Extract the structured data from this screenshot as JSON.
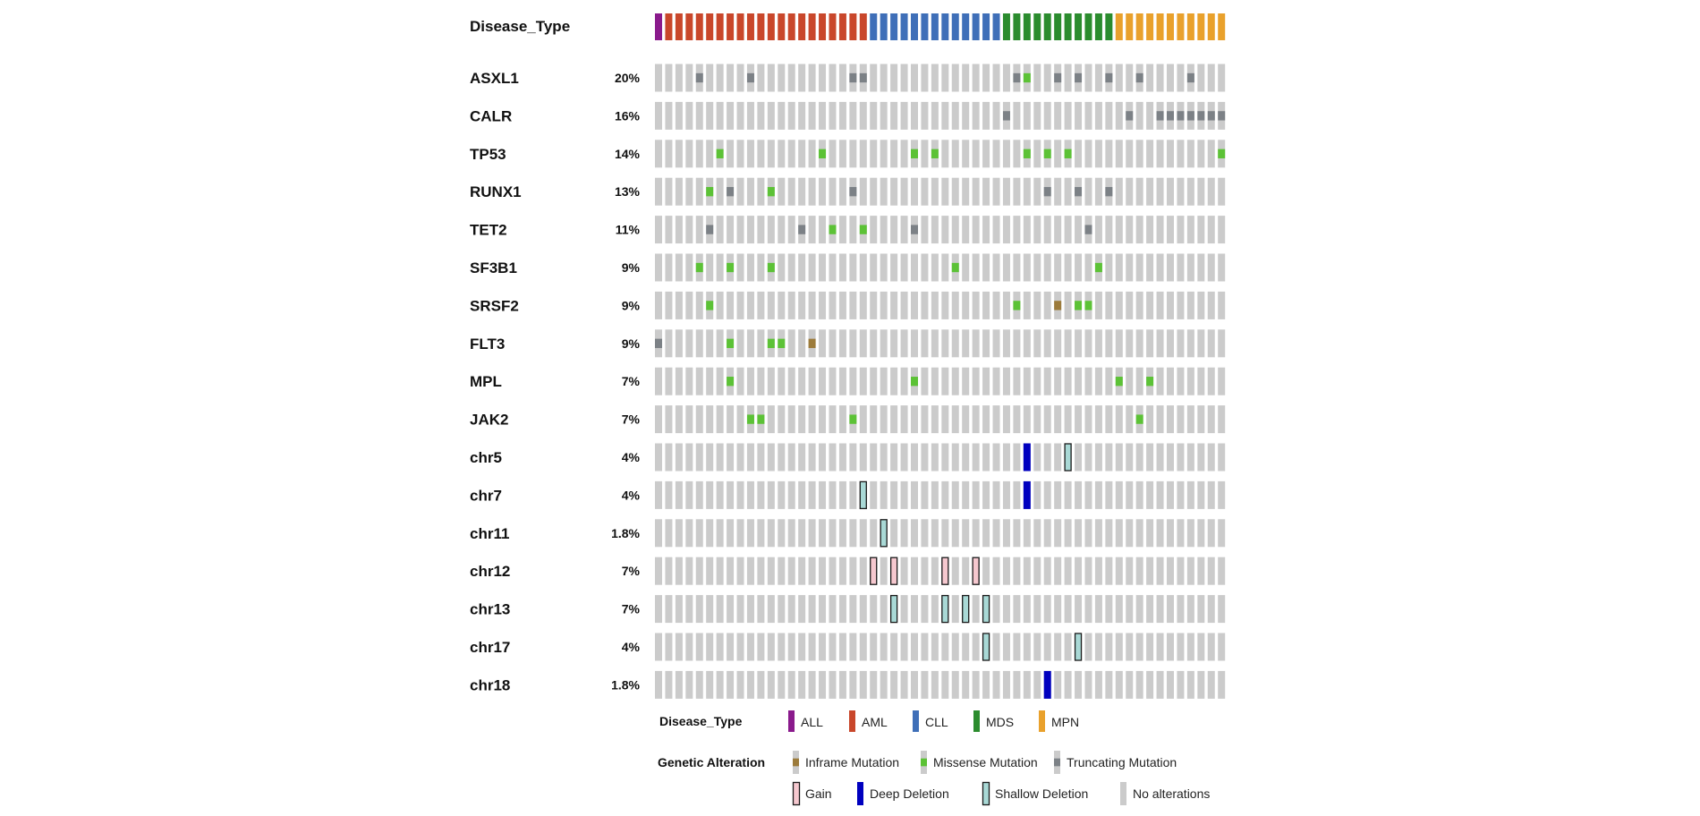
{
  "chart_data": {
    "type": "oncoprint",
    "sample_count": 56,
    "annotation_track": {
      "label": "Disease_Type",
      "groups": [
        {
          "name": "ALL",
          "count": 1,
          "color": "#8a1a8c"
        },
        {
          "name": "AML",
          "count": 20,
          "color": "#c9472b"
        },
        {
          "name": "CLL",
          "count": 13,
          "color": "#3f6fb8"
        },
        {
          "name": "MDS",
          "count": 11,
          "color": "#2b8c2e"
        },
        {
          "name": "MPN",
          "count": 11,
          "color": "#e9a12c"
        }
      ]
    },
    "alteration_colors": {
      "inframe": "#9c7b3b",
      "missense": "#5cc236",
      "truncating": "#7c8186",
      "gain": "#f6c8cf",
      "deep": "#0000bf",
      "shallow": "#a9d9d6",
      "none": "#cbcbcb"
    },
    "rows": [
      {
        "label": "ASXL1",
        "pct": "20%",
        "alterations": {
          "truncating": [
            4,
            9,
            19,
            20,
            35,
            39,
            41,
            44,
            47,
            52
          ],
          "missense": [
            36
          ]
        }
      },
      {
        "label": "CALR",
        "pct": "16%",
        "alterations": {
          "truncating": [
            34,
            46,
            49,
            50,
            51,
            52,
            53,
            54,
            55
          ]
        }
      },
      {
        "label": "TP53",
        "pct": "14%",
        "alterations": {
          "missense": [
            6,
            16,
            25,
            27,
            36,
            38,
            40,
            55
          ]
        }
      },
      {
        "label": "RUNX1",
        "pct": "13%",
        "alterations": {
          "missense": [
            5,
            11
          ],
          "truncating": [
            7,
            19,
            38,
            41,
            44
          ]
        }
      },
      {
        "label": "TET2",
        "pct": "11%",
        "alterations": {
          "truncating": [
            5,
            14,
            25,
            42
          ],
          "missense": [
            17,
            20
          ]
        }
      },
      {
        "label": "SF3B1",
        "pct": "9%",
        "alterations": {
          "missense": [
            4,
            7,
            11,
            29,
            43
          ]
        }
      },
      {
        "label": "SRSF2",
        "pct": "9%",
        "alterations": {
          "missense": [
            5,
            35,
            41,
            42
          ],
          "inframe": [
            39
          ]
        }
      },
      {
        "label": "FLT3",
        "pct": "9%",
        "alterations": {
          "truncating": [
            0
          ],
          "missense": [
            7,
            11,
            12
          ],
          "inframe": [
            15
          ]
        }
      },
      {
        "label": "MPL",
        "pct": "7%",
        "alterations": {
          "missense": [
            7,
            25,
            45,
            48
          ]
        }
      },
      {
        "label": "JAK2",
        "pct": "7%",
        "alterations": {
          "missense": [
            9,
            10,
            19,
            47
          ]
        }
      },
      {
        "label": "chr5",
        "pct": "4%",
        "alterations": {
          "deep": [
            36
          ],
          "shallow": [
            40
          ]
        }
      },
      {
        "label": "chr7",
        "pct": "4%",
        "alterations": {
          "shallow": [
            20
          ],
          "deep": [
            36
          ]
        }
      },
      {
        "label": "chr11",
        "pct": "1.8%",
        "alterations": {
          "shallow": [
            22
          ]
        }
      },
      {
        "label": "chr12",
        "pct": "7%",
        "alterations": {
          "gain": [
            21,
            23,
            28,
            31
          ]
        }
      },
      {
        "label": "chr13",
        "pct": "7%",
        "alterations": {
          "shallow": [
            23,
            28,
            30,
            32
          ]
        }
      },
      {
        "label": "chr17",
        "pct": "4%",
        "alterations": {
          "shallow": [
            32,
            41
          ]
        }
      },
      {
        "label": "chr18",
        "pct": "1.8%",
        "alterations": {
          "deep": [
            38
          ]
        }
      }
    ],
    "legend": {
      "disease_title": "Disease_Type",
      "disease_items": [
        "ALL",
        "AML",
        "CLL",
        "MDS",
        "MPN"
      ],
      "alteration_title": "Genetic Alteration",
      "alteration_items": [
        {
          "key": "inframe",
          "label": "Inframe Mutation"
        },
        {
          "key": "missense",
          "label": "Missense Mutation"
        },
        {
          "key": "truncating",
          "label": "Truncating Mutation"
        },
        {
          "key": "gain",
          "label": "Gain"
        },
        {
          "key": "deep",
          "label": "Deep Deletion"
        },
        {
          "key": "shallow",
          "label": "Shallow Deletion"
        },
        {
          "key": "none",
          "label": "No alterations"
        }
      ]
    }
  }
}
